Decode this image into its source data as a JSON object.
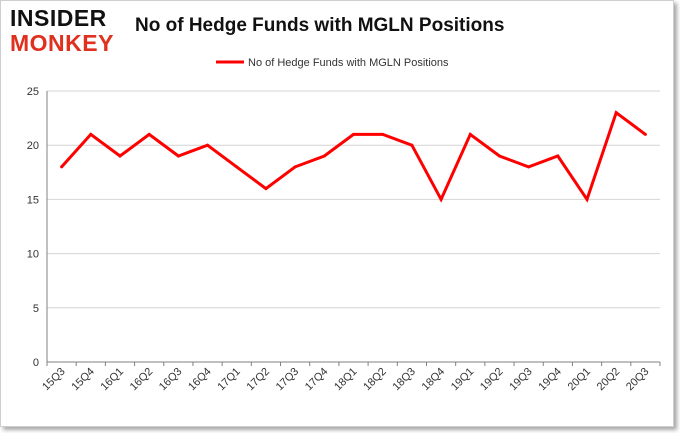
{
  "brand": {
    "line1": "INSIDER",
    "line2": "MONKEY"
  },
  "colors": {
    "series": "#ff0000",
    "grid": "#d4d4d4",
    "axis": "#808080",
    "brand_red": "#e0301e"
  },
  "chart_data": {
    "type": "line",
    "title": "No of Hedge Funds with MGLN Positions",
    "xlabel": "",
    "ylabel": "",
    "categories": [
      "15Q3",
      "15Q4",
      "16Q1",
      "16Q2",
      "16Q3",
      "16Q4",
      "17Q1",
      "17Q2",
      "17Q3",
      "17Q4",
      "18Q1",
      "18Q2",
      "18Q3",
      "18Q4",
      "19Q1",
      "19Q2",
      "19Q3",
      "19Q4",
      "20Q1",
      "20Q2",
      "20Q3"
    ],
    "series": [
      {
        "name": "No of Hedge Funds with MGLN Positions",
        "values": [
          18,
          21,
          19,
          21,
          19,
          20,
          18,
          16,
          18,
          19,
          21,
          21,
          20,
          15,
          21,
          19,
          18,
          19,
          15,
          23,
          21
        ]
      }
    ],
    "ylim": [
      0,
      25
    ],
    "yticks": [
      0,
      5,
      10,
      15,
      20,
      25
    ],
    "grid": true,
    "legend": "top-center"
  }
}
